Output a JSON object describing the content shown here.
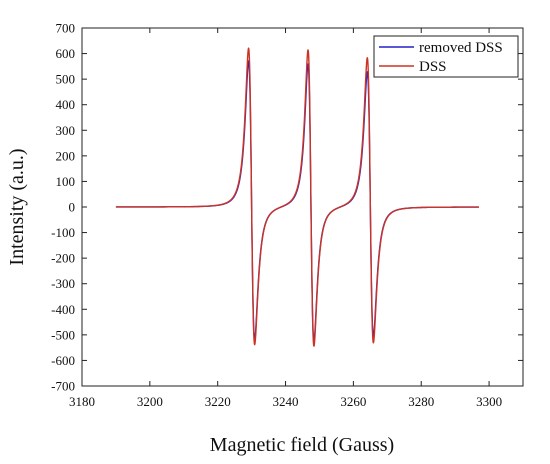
{
  "chart_data": {
    "type": "line",
    "title": "",
    "xlabel": "Magnetic field (Gauss)",
    "ylabel": "Intensity (a.u.)",
    "xlim": [
      3180,
      3310
    ],
    "ylim": [
      -700,
      700
    ],
    "xticks": [
      3180,
      3200,
      3220,
      3240,
      3260,
      3280,
      3300
    ],
    "yticks": [
      700,
      600,
      500,
      400,
      300,
      200,
      100,
      0,
      -100,
      -200,
      -300,
      -400,
      -500,
      -600,
      -700
    ],
    "grid": false,
    "legend_position": "top-right",
    "lines": [
      {
        "center": 3230,
        "halfwidth": 1.55,
        "peaks": {
          "removed DSS": [
            570,
            -520
          ],
          "DSS": [
            620,
            -540
          ]
        }
      },
      {
        "center": 3247.5,
        "halfwidth": 1.5,
        "peaks": {
          "removed DSS": [
            560,
            -525
          ],
          "DSS": [
            615,
            -545
          ]
        }
      },
      {
        "center": 3265,
        "halfwidth": 1.55,
        "peaks": {
          "removed DSS": [
            530,
            -505
          ],
          "DSS": [
            585,
            -530
          ]
        }
      }
    ],
    "x_range_data": [
      3190,
      3297
    ],
    "series": [
      {
        "name": "removed DSS",
        "color": "#2222cc"
      },
      {
        "name": "DSS",
        "color": "#cc3322"
      }
    ]
  }
}
